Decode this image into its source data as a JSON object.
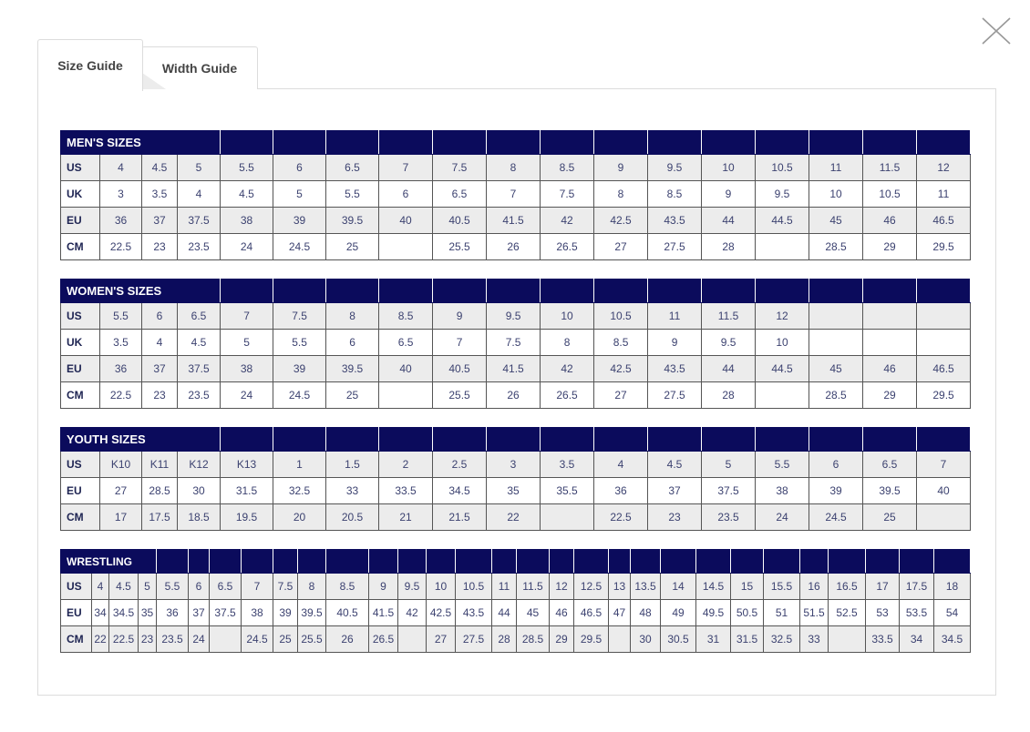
{
  "tabs": [
    {
      "label": "Size Guide",
      "active": true
    },
    {
      "label": "Width Guide",
      "active": false
    }
  ],
  "close_icon": "close-x-icon",
  "colors": {
    "header_bg": "#0b0b5c",
    "alt_row": "#ececec",
    "text": "#3c4270"
  },
  "tables": [
    {
      "title": "MEN'S SIZES",
      "rows": [
        {
          "label": "US",
          "values": [
            "4",
            "4.5",
            "5",
            "5.5",
            "6",
            "6.5",
            "7",
            "7.5",
            "8",
            "8.5",
            "9",
            "9.5",
            "10",
            "10.5",
            "11",
            "11.5",
            "12"
          ]
        },
        {
          "label": "UK",
          "values": [
            "3",
            "3.5",
            "4",
            "4.5",
            "5",
            "5.5",
            "6",
            "6.5",
            "7",
            "7.5",
            "8",
            "8.5",
            "9",
            "9.5",
            "10",
            "10.5",
            "11"
          ]
        },
        {
          "label": "EU",
          "values": [
            "36",
            "37",
            "37.5",
            "38",
            "39",
            "39.5",
            "40",
            "40.5",
            "41.5",
            "42",
            "42.5",
            "43.5",
            "44",
            "44.5",
            "45",
            "46",
            "46.5"
          ]
        },
        {
          "label": "CM",
          "values": [
            "22.5",
            "23",
            "23.5",
            "24",
            "24.5",
            "25",
            "",
            "25.5",
            "26",
            "26.5",
            "27",
            "27.5",
            "28",
            "",
            "28.5",
            "29",
            "29.5"
          ]
        }
      ]
    },
    {
      "title": "WOMEN'S SIZES",
      "rows": [
        {
          "label": "US",
          "values": [
            "5.5",
            "6",
            "6.5",
            "7",
            "7.5",
            "8",
            "8.5",
            "9",
            "9.5",
            "10",
            "10.5",
            "11",
            "11.5",
            "12",
            "",
            "",
            ""
          ]
        },
        {
          "label": "UK",
          "values": [
            "3.5",
            "4",
            "4.5",
            "5",
            "5.5",
            "6",
            "6.5",
            "7",
            "7.5",
            "8",
            "8.5",
            "9",
            "9.5",
            "10",
            "",
            "",
            ""
          ]
        },
        {
          "label": "EU",
          "values": [
            "36",
            "37",
            "37.5",
            "38",
            "39",
            "39.5",
            "40",
            "40.5",
            "41.5",
            "42",
            "42.5",
            "43.5",
            "44",
            "44.5",
            "45",
            "46",
            "46.5"
          ]
        },
        {
          "label": "CM",
          "values": [
            "22.5",
            "23",
            "23.5",
            "24",
            "24.5",
            "25",
            "",
            "25.5",
            "26",
            "26.5",
            "27",
            "27.5",
            "28",
            "",
            "28.5",
            "29",
            "29.5"
          ]
        }
      ]
    },
    {
      "title": "YOUTH SIZES",
      "rows": [
        {
          "label": "US",
          "values": [
            "K10",
            "K11",
            "K12",
            "K13",
            "1",
            "1.5",
            "2",
            "2.5",
            "3",
            "3.5",
            "4",
            "4.5",
            "5",
            "5.5",
            "6",
            "6.5",
            "7"
          ]
        },
        {
          "label": "EU",
          "values": [
            "27",
            "28.5",
            "30",
            "31.5",
            "32.5",
            "33",
            "33.5",
            "34.5",
            "35",
            "35.5",
            "36",
            "37",
            "37.5",
            "38",
            "39",
            "39.5",
            "40"
          ]
        },
        {
          "label": "CM",
          "values": [
            "17",
            "17.5",
            "18.5",
            "19.5",
            "20",
            "20.5",
            "21",
            "21.5",
            "22",
            "",
            "22.5",
            "23",
            "23.5",
            "24",
            "24.5",
            "25",
            ""
          ]
        }
      ]
    },
    {
      "title": "WRESTLING",
      "rows": [
        {
          "label": "US",
          "values": [
            "4",
            "4.5",
            "5",
            "5.5",
            "6",
            "6.5",
            "7",
            "7.5",
            "8",
            "8.5",
            "9",
            "9.5",
            "10",
            "10.5",
            "11",
            "11.5",
            "12",
            "12.5",
            "13",
            "13.5",
            "14",
            "14.5",
            "15",
            "15.5",
            "16",
            "16.5",
            "17",
            "17.5",
            "18"
          ]
        },
        {
          "label": "EU",
          "values": [
            "34",
            "34.5",
            "35",
            "36",
            "37",
            "37.5",
            "38",
            "39",
            "39.5",
            "40.5",
            "41.5",
            "42",
            "42.5",
            "43.5",
            "44",
            "45",
            "46",
            "46.5",
            "47",
            "48",
            "49",
            "49.5",
            "50.5",
            "51",
            "51.5",
            "52.5",
            "53",
            "53.5",
            "54"
          ]
        },
        {
          "label": "CM",
          "values": [
            "22",
            "22.5",
            "23",
            "23.5",
            "24",
            "",
            "24.5",
            "25",
            "25.5",
            "26",
            "26.5",
            "",
            "27",
            "27.5",
            "28",
            "28.5",
            "29",
            "29.5",
            "",
            "30",
            "30.5",
            "31",
            "31.5",
            "32.5",
            "33",
            "",
            "33.5",
            "34",
            "34.5"
          ]
        }
      ]
    }
  ]
}
